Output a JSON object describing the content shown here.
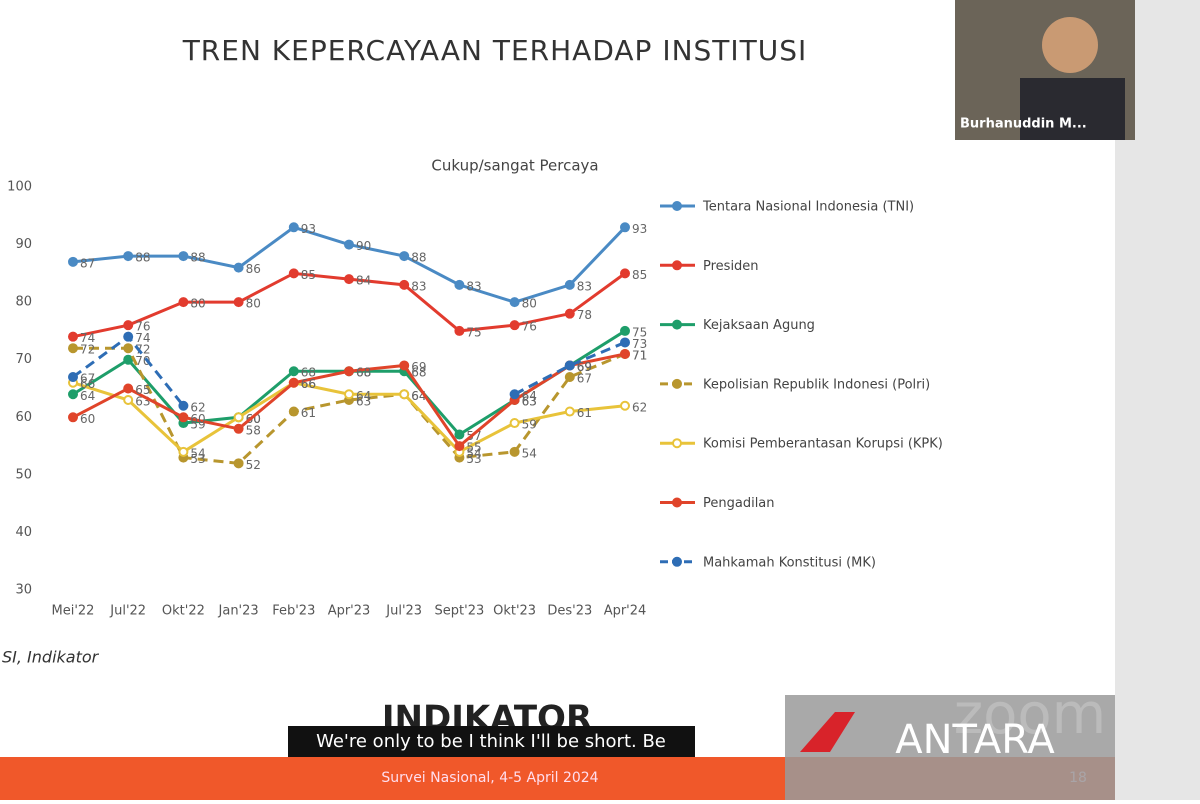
{
  "slide_title": "TREN KEPERCAYAAN TERHADAP INSTITUSI",
  "chart_data": {
    "type": "line",
    "subtitle": "Cukup/sangat Percaya",
    "categories": [
      "Mei'22",
      "Jul'22",
      "Okt'22",
      "Jan'23",
      "Feb'23",
      "Apr'23",
      "Jul'23",
      "Sept'23",
      "Okt'23",
      "Des'23",
      "Apr'24"
    ],
    "ylim": [
      30,
      100
    ],
    "yticks": [
      30,
      40,
      50,
      60,
      70,
      80,
      90,
      100
    ],
    "series": [
      {
        "name": "Tentara Nasional Indonesia (TNI)",
        "color": "#4a8ac4",
        "dashed": false,
        "hollow": false,
        "values": [
          87,
          88,
          88,
          86,
          93,
          90,
          88,
          83,
          80,
          83,
          93
        ]
      },
      {
        "name": "Presiden",
        "color": "#e23b2e",
        "dashed": false,
        "hollow": false,
        "values": [
          74,
          76,
          80,
          80,
          85,
          84,
          83,
          75,
          76,
          78,
          85
        ]
      },
      {
        "name": "Kejaksaan Agung",
        "color": "#1e9e6a",
        "dashed": false,
        "hollow": false,
        "values": [
          64,
          70,
          59,
          60,
          68,
          68,
          68,
          57,
          63,
          69,
          75
        ]
      },
      {
        "name": "Kepolisian Republik Indonesi (Polri)",
        "color": "#b8962e",
        "dashed": true,
        "hollow": false,
        "values": [
          72,
          72,
          53,
          52,
          61,
          63,
          64,
          53,
          54,
          67,
          71
        ]
      },
      {
        "name": "Komisi Pemberantasan Korupsi (KPK)",
        "color": "#e8c33a",
        "dashed": false,
        "hollow": true,
        "values": [
          66,
          63,
          54,
          60,
          66,
          64,
          64,
          54,
          59,
          61,
          62
        ]
      },
      {
        "name": "Pengadilan",
        "color": "#e0442a",
        "dashed": false,
        "hollow": false,
        "values": [
          60,
          65,
          60,
          58,
          66,
          68,
          69,
          55,
          63,
          69,
          71
        ]
      },
      {
        "name": "Mahkamah Konstitusi (MK)",
        "color": "#2e6db5",
        "dashed": true,
        "hollow": false,
        "values": [
          67,
          74,
          62,
          null,
          null,
          null,
          null,
          null,
          64,
          69,
          73
        ]
      }
    ]
  },
  "source": "SI, Indikator",
  "logo": "INDIKATOR",
  "caption": "We're only to be I think I'll be short. Be",
  "footer": "Survei Nasional, 4-5 April 2024",
  "page_number": "18",
  "participant": "Burhanuddin M...",
  "watermark": "zoom",
  "agency": "ANTARA"
}
